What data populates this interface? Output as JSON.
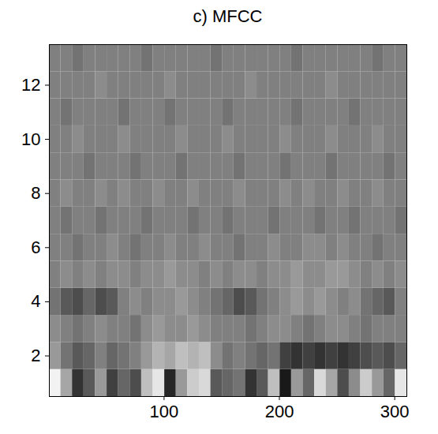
{
  "chart_data": {
    "type": "heatmap",
    "title": "c) MFCC",
    "xlim": [
      0.5,
      310.5
    ],
    "xticks": [
      100,
      200,
      300
    ],
    "ylim": [
      0.5,
      13.5
    ],
    "yticks": [
      2,
      4,
      6,
      8,
      10,
      12
    ],
    "x_edges": [
      0.5,
      10.5,
      20.5,
      30.5,
      40.5,
      50.5,
      60.5,
      70.5,
      80.5,
      90.5,
      100.5,
      110.5,
      120.5,
      130.5,
      140.5,
      150.5,
      160.5,
      170.5,
      180.5,
      190.5,
      200.5,
      210.5,
      220.5,
      230.5,
      240.5,
      250.5,
      260.5,
      270.5,
      280.5,
      290.5,
      300.5,
      310.5
    ],
    "y_edges": [
      0.5,
      1.5,
      2.5,
      3.5,
      4.5,
      5.5,
      6.5,
      7.5,
      8.5,
      9.5,
      10.5,
      11.5,
      12.5,
      13.5
    ],
    "color_range": [
      -1,
      1
    ],
    "cells": [
      [
        0.9,
        0.3,
        -0.6,
        -0.3,
        0.2,
        -0.5,
        -0.2,
        -0.4,
        0.5,
        0.8,
        -0.7,
        0.2,
        0.6,
        0.7,
        -0.3,
        -0.2,
        -0.1,
        -0.6,
        -0.3,
        0.5,
        -0.8,
        0.2,
        -0.2,
        0.7,
        0.3,
        -0.4,
        0.1,
        0.6,
        0.2,
        -0.2,
        0.8
      ],
      [
        0.2,
        -0.1,
        -0.3,
        -0.2,
        0.0,
        -0.2,
        -0.1,
        0.0,
        0.2,
        0.4,
        0.3,
        0.5,
        0.4,
        0.5,
        0.1,
        -0.1,
        0.0,
        -0.1,
        -0.2,
        -0.1,
        -0.5,
        -0.6,
        -0.5,
        -0.6,
        -0.5,
        -0.6,
        -0.5,
        -0.4,
        -0.3,
        -0.4,
        -0.2
      ],
      [
        0.1,
        0.0,
        -0.1,
        0.0,
        0.1,
        0.0,
        0.0,
        -0.1,
        0.1,
        0.2,
        0.1,
        0.1,
        0.2,
        0.1,
        0.0,
        0.0,
        0.0,
        -0.1,
        0.0,
        0.1,
        0.1,
        0.0,
        -0.1,
        0.0,
        0.1,
        0.1,
        0.0,
        -0.1,
        0.0,
        0.0,
        0.0
      ],
      [
        -0.1,
        -0.3,
        -0.4,
        -0.2,
        -0.4,
        -0.3,
        0.0,
        0.1,
        0.0,
        0.1,
        0.1,
        0.2,
        0.1,
        0.0,
        -0.1,
        -0.2,
        -0.4,
        -0.3,
        -0.1,
        0.0,
        0.1,
        0.2,
        0.1,
        0.2,
        0.1,
        0.0,
        0.1,
        -0.1,
        -0.2,
        -0.3,
        0.0
      ],
      [
        0.0,
        0.1,
        0.0,
        0.1,
        0.0,
        0.1,
        0.1,
        0.0,
        0.1,
        0.1,
        0.2,
        0.1,
        0.1,
        0.0,
        0.1,
        0.0,
        0.1,
        0.1,
        0.0,
        0.1,
        0.1,
        0.2,
        0.1,
        0.1,
        0.2,
        0.2,
        0.1,
        0.0,
        0.1,
        0.0,
        0.1
      ],
      [
        0.0,
        0.0,
        -0.1,
        0.0,
        0.0,
        0.1,
        0.0,
        -0.1,
        0.0,
        0.0,
        0.1,
        0.0,
        0.0,
        0.1,
        0.0,
        0.0,
        -0.1,
        0.0,
        0.0,
        0.1,
        0.0,
        0.0,
        0.1,
        0.1,
        0.0,
        0.1,
        0.0,
        0.0,
        -0.1,
        0.0,
        0.0
      ],
      [
        0.0,
        -0.1,
        0.0,
        0.0,
        -0.1,
        0.0,
        0.0,
        0.0,
        -0.1,
        0.0,
        0.0,
        0.0,
        -0.1,
        0.0,
        0.0,
        -0.1,
        0.0,
        0.0,
        0.0,
        -0.1,
        0.0,
        0.0,
        0.0,
        -0.1,
        0.0,
        0.0,
        -0.1,
        0.0,
        0.0,
        0.0,
        -0.1
      ],
      [
        0.0,
        0.1,
        0.0,
        0.0,
        0.1,
        0.0,
        0.1,
        0.0,
        0.0,
        0.1,
        0.0,
        0.0,
        0.1,
        0.0,
        0.0,
        0.0,
        0.1,
        0.0,
        0.0,
        0.0,
        0.1,
        0.0,
        0.1,
        0.0,
        0.0,
        0.1,
        0.0,
        0.0,
        0.1,
        0.0,
        0.0
      ],
      [
        0.0,
        0.0,
        0.0,
        -0.1,
        0.0,
        0.0,
        0.0,
        -0.1,
        0.0,
        0.0,
        0.0,
        -0.1,
        0.0,
        0.0,
        0.0,
        0.0,
        -0.1,
        0.0,
        0.0,
        0.0,
        -0.1,
        0.0,
        0.0,
        0.0,
        -0.1,
        0.0,
        0.0,
        0.0,
        0.0,
        -0.1,
        0.0
      ],
      [
        0.0,
        0.0,
        0.1,
        0.0,
        0.0,
        0.0,
        0.1,
        0.0,
        0.0,
        0.0,
        0.0,
        0.1,
        0.0,
        0.0,
        0.0,
        0.1,
        0.0,
        0.0,
        0.0,
        0.0,
        0.1,
        0.0,
        0.0,
        0.0,
        0.1,
        0.0,
        0.0,
        0.0,
        0.1,
        0.0,
        0.0
      ],
      [
        0.0,
        -0.1,
        0.0,
        0.0,
        0.0,
        0.0,
        -0.1,
        0.0,
        0.0,
        0.0,
        -0.1,
        0.0,
        0.0,
        0.0,
        0.0,
        -0.1,
        0.0,
        0.0,
        0.0,
        0.0,
        0.0,
        -0.1,
        0.0,
        0.0,
        0.0,
        0.0,
        -0.1,
        0.0,
        0.0,
        0.0,
        0.0
      ],
      [
        0.0,
        0.0,
        0.0,
        0.0,
        0.1,
        0.0,
        0.0,
        0.0,
        0.0,
        0.0,
        0.1,
        0.0,
        0.0,
        0.0,
        0.0,
        0.0,
        0.0,
        0.1,
        0.0,
        0.0,
        0.0,
        0.0,
        0.0,
        0.0,
        0.1,
        0.0,
        0.0,
        0.0,
        0.0,
        0.0,
        0.0
      ],
      [
        0.0,
        0.0,
        -0.1,
        0.0,
        0.0,
        0.0,
        0.0,
        0.0,
        -0.1,
        0.0,
        0.0,
        0.0,
        0.0,
        0.0,
        -0.1,
        0.0,
        0.0,
        0.0,
        0.0,
        0.0,
        0.0,
        -0.1,
        0.0,
        0.0,
        0.0,
        0.0,
        0.0,
        0.0,
        -0.1,
        0.0,
        0.0
      ]
    ]
  }
}
